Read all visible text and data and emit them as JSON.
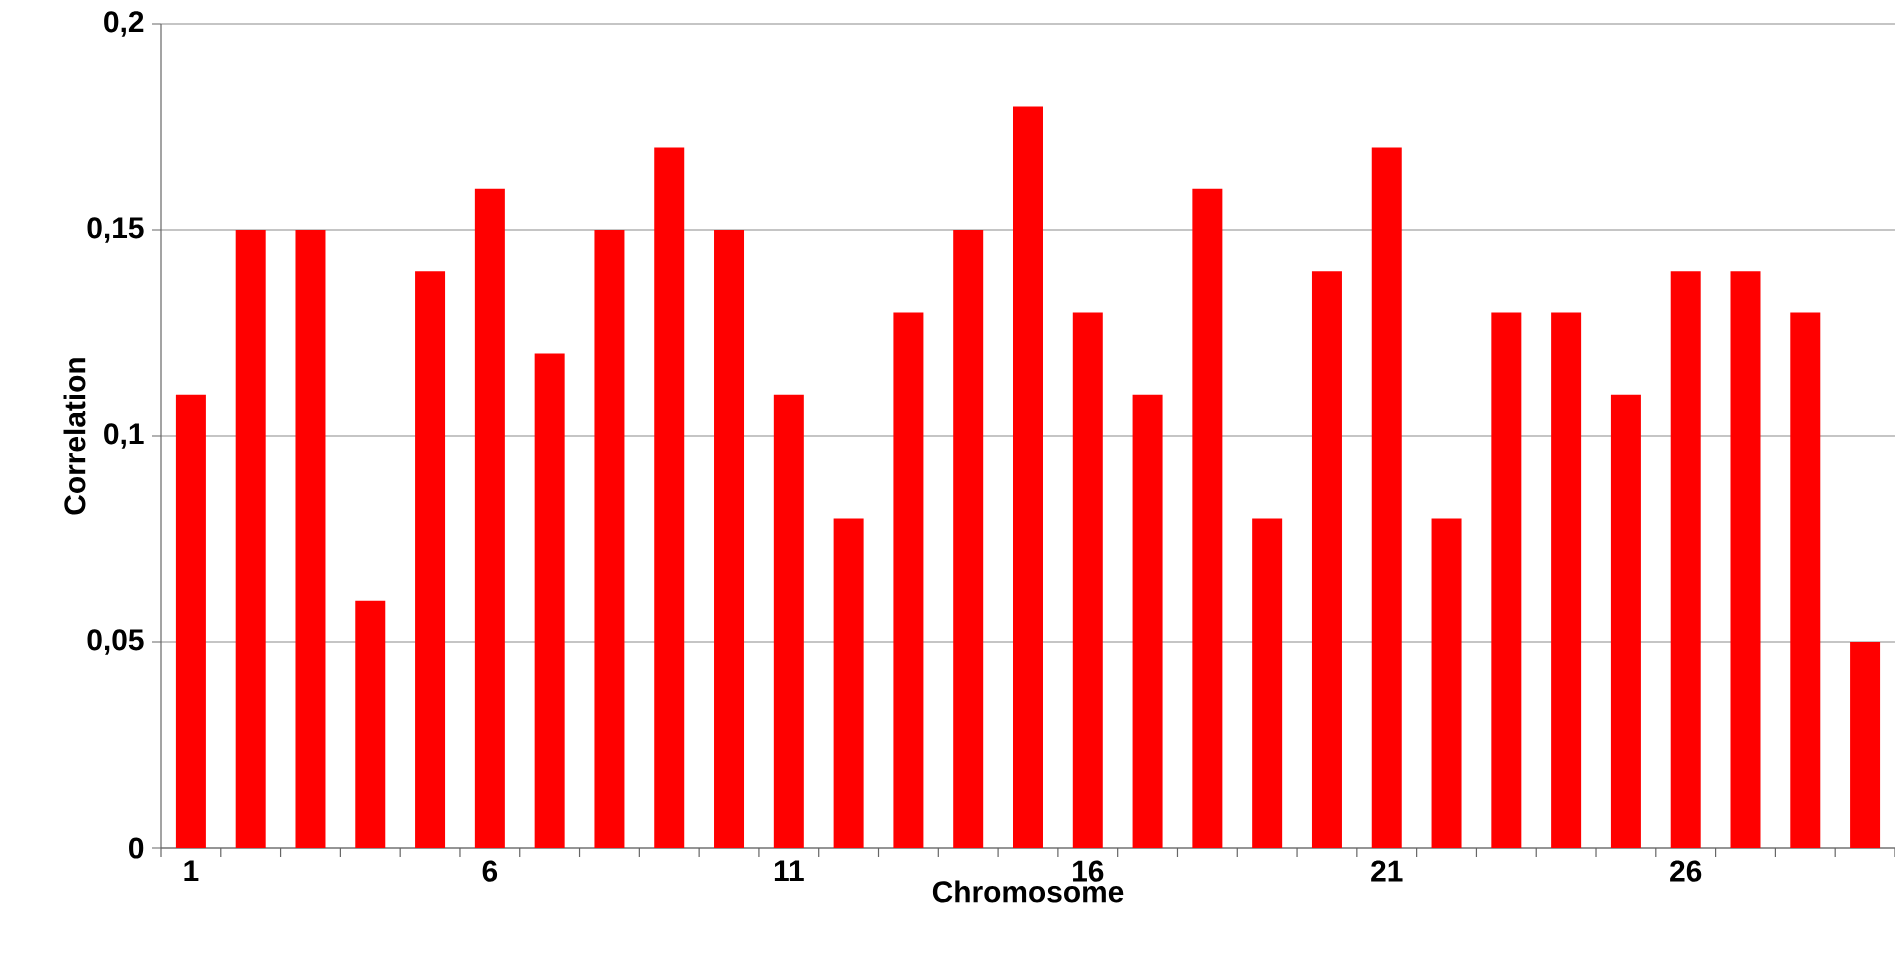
{
  "chart_data": {
    "type": "bar",
    "xlabel": "Chromosome",
    "ylabel": "Correlation",
    "categories": [
      "1",
      null,
      null,
      null,
      null,
      "6",
      null,
      null,
      null,
      null,
      "11",
      null,
      null,
      null,
      null,
      "16",
      null,
      null,
      null,
      null,
      "21",
      null,
      null,
      null,
      null,
      "26",
      null,
      null,
      null
    ],
    "values": [
      0.11,
      0.15,
      0.15,
      0.06,
      0.14,
      0.16,
      0.12,
      0.15,
      0.17,
      0.15,
      0.11,
      0.08,
      0.13,
      0.15,
      0.18,
      0.13,
      0.11,
      0.16,
      0.08,
      0.14,
      0.17,
      0.08,
      0.13,
      0.13,
      0.11,
      0.14,
      0.14,
      0.13,
      0.05
    ],
    "color": "#ff0000",
    "ylim": [
      0,
      0.2
    ],
    "yticks": [
      0,
      {
        "value": 0.05,
        "label": "0,05"
      },
      {
        "value": 0.1,
        "label": "0,1"
      },
      {
        "value": 0.15,
        "label": "0,15"
      },
      {
        "value": 0.2,
        "label": "0,2"
      }
    ],
    "grid": "y"
  }
}
